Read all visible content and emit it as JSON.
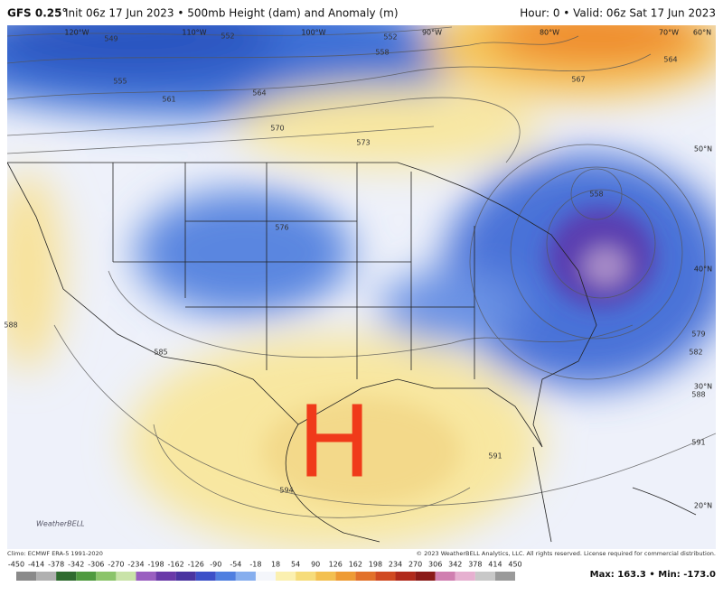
{
  "header": {
    "model": "GFS 0.25°",
    "description": "Init 06z 17 Jun 2023 • 500mb Height (dam) and Anomaly (m)",
    "valid": "Hour: 0 • Valid: 06z Sat 17 Jun 2023"
  },
  "map": {
    "geo_labels": [
      "120°W",
      "110°W",
      "100°W",
      "90°W",
      "80°W",
      "70°W",
      "60°N",
      "50°N",
      "40°N",
      "30°N",
      "20°N"
    ],
    "contour_labels": [
      "549",
      "552",
      "552",
      "558",
      "555",
      "561",
      "564",
      "567",
      "564",
      "570",
      "573",
      "576",
      "558",
      "585",
      "588",
      "579",
      "582",
      "588",
      "591",
      "591",
      "594"
    ],
    "high_marker": "H",
    "logo": "WeatherBELL"
  },
  "footer": {
    "climo": "Climo: ECMWF ERA-5 1991-2020",
    "copyright": "© 2023 WeatherBELL Analytics, LLC. All rights reserved. License required for commercial distribution.",
    "extremes": "Max: 163.3 • Min: -173.0"
  },
  "colorbar": {
    "ticks": [
      -450,
      -414,
      -378,
      -342,
      -306,
      -270,
      -234,
      -198,
      -162,
      -126,
      -90,
      -54,
      -18,
      18,
      54,
      90,
      126,
      162,
      198,
      234,
      270,
      306,
      342,
      378,
      414,
      450
    ],
    "colors": [
      "#8a8a8a",
      "#b0b0b0",
      "#2f6b2f",
      "#4f9a3f",
      "#8bc46a",
      "#c9e3a8",
      "#9a5fc0",
      "#6a3aa8",
      "#4a34a0",
      "#3c50c8",
      "#4f7fe0",
      "#86aeee",
      "#f4f6fb",
      "#fbf0b0",
      "#f6dc7a",
      "#f3c050",
      "#ee9b34",
      "#e2712a",
      "#d04a22",
      "#b02a1c",
      "#8a1a18",
      "#d07fb0",
      "#e6b0d0",
      "#c8c8c8",
      "#9a9a9a"
    ]
  }
}
